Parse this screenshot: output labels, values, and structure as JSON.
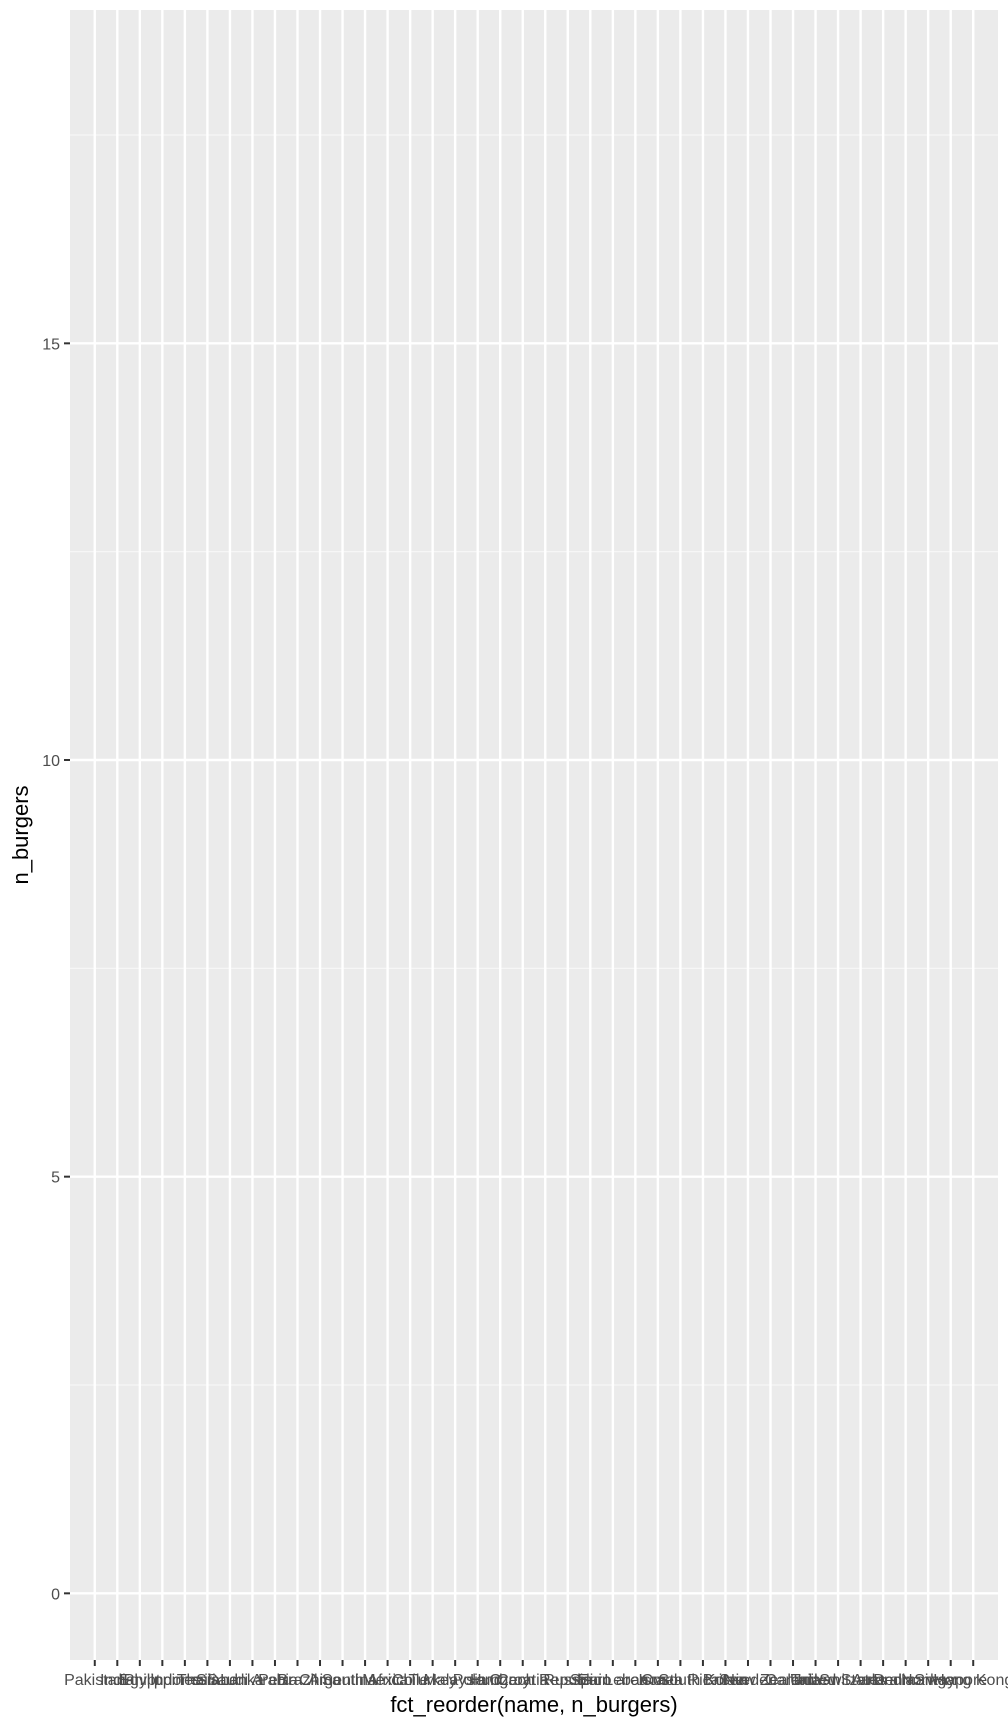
{
  "chart_data": {
    "type": "bar",
    "xlabel": "fct_reorder(name, n_burgers)",
    "ylabel": "n_burgers",
    "ylim": [
      -0.8,
      19
    ],
    "yticks": [
      0,
      5,
      10,
      15
    ],
    "grid": true,
    "categories": [
      "Pakistan",
      "India",
      "Egypt",
      "Philippines",
      "Indonesia",
      "Thailand",
      "Sri Lanka",
      "Saudi Arabia",
      "Peru",
      "Brazil",
      "China",
      "Argentina",
      "South Africa",
      "Mexico",
      "Chile",
      "Turkey",
      "Malaysia",
      "Poland",
      "Hungary",
      "Croatia",
      "Czech Republic",
      "Russia",
      "Spain",
      "Euro area",
      "Lebanon",
      "Israel",
      "Costa Rica",
      "South Korea",
      "Britain",
      "Sweden",
      "New Zealand",
      "Canada",
      "Taiwan",
      "United States",
      "Switzerland",
      "Australia",
      "Denmark",
      "Norway",
      "Singapore",
      "Hong Kong"
    ],
    "values": [
      null,
      null,
      null,
      null,
      null,
      null,
      null,
      null,
      null,
      null,
      null,
      null,
      null,
      null,
      null,
      null,
      null,
      null,
      null,
      null,
      null,
      null,
      null,
      null,
      null,
      null,
      null,
      null,
      null,
      null,
      null,
      null,
      null,
      null,
      null,
      null,
      null,
      null,
      null,
      null
    ]
  }
}
